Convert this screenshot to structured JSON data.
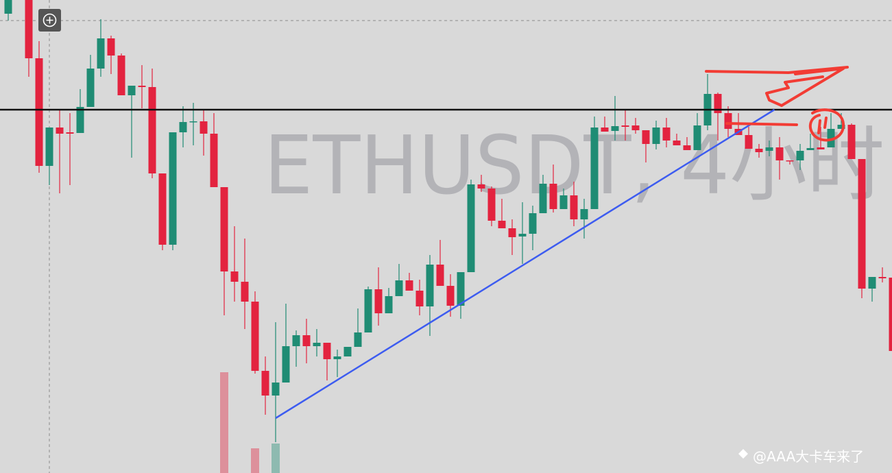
{
  "chart_data": {
    "type": "candlestick",
    "watermark": "ETHUSDT, 4小时",
    "footer": "@AAA大卡车来了",
    "ylim": [
      0,
      690
    ],
    "up_color": "#1f8c74",
    "down_color": "#e3233f",
    "open": [
      670,
      null,
      690,
      605,
      448,
      504,
      497,
      496,
      534,
      590,
      634,
      609,
      551,
      565,
      563,
      437,
      333,
      497,
      512,
      513,
      495,
      417,
      294,
      279,
      250,
      149,
      113,
      132,
      185,
      201,
      185,
      190,
      166,
      170,
      184,
      205,
      268,
      233,
      258,
      281,
      266,
      243,
      304,
      273,
      244,
      293,
      421,
      415,
      368,
      357,
      345,
      349,
      379,
      422,
      385,
      405,
      370,
      385,
      504,
      499,
      507,
      507,
      500,
      480,
      504,
      485,
      478,
      471,
      507,
      553,
      525,
      502,
      493,
      473,
      470,
      475,
      456,
      456,
      471,
      475,
      475,
      502,
      508,
      458,
      269,
      286,
      285
    ],
    "high": [
      690,
      null,
      690,
      630,
      504,
      530,
      525,
      560,
      610,
      662,
      638,
      612,
      565,
      595,
      590,
      437,
      497,
      535,
      540,
      530,
      525,
      417,
      360,
      342,
      265,
      170,
      220,
      247,
      208,
      225,
      210,
      190,
      180,
      184,
      240,
      272,
      300,
      270,
      305,
      292,
      282,
      318,
      340,
      290,
      293,
      428,
      435,
      418,
      400,
      370,
      395,
      390,
      435,
      450,
      415,
      425,
      400,
      520,
      520,
      550,
      530,
      518,
      500,
      514,
      518,
      495,
      490,
      525,
      582,
      555,
      535,
      525,
      505,
      480,
      485,
      490,
      456,
      480,
      495,
      505,
      525,
      525,
      510,
      458,
      286,
      300,
      285
    ],
    "low": [
      660,
      null,
      578,
      438,
      420,
      408,
      420,
      496,
      534,
      578,
      582,
      551,
      460,
      532,
      430,
      325,
      325,
      475,
      478,
      463,
      417,
      230,
      250,
      210,
      145,
      85,
      45,
      132,
      155,
      160,
      170,
      135,
      140,
      170,
      184,
      205,
      215,
      233,
      258,
      266,
      230,
      200,
      273,
      228,
      225,
      293,
      410,
      360,
      357,
      318,
      305,
      325,
      379,
      380,
      385,
      360,
      342,
      385,
      498,
      485,
      485,
      495,
      453,
      472,
      475,
      478,
      471,
      471,
      500,
      485,
      490,
      493,
      473,
      460,
      462,
      428,
      450,
      442,
      471,
      472,
      475,
      502,
      458,
      255,
      250,
      278,
      178
    ],
    "close": [
      690,
      null,
      605,
      448,
      504,
      495,
      495,
      534,
      590,
      634,
      609,
      551,
      565,
      563,
      437,
      333,
      497,
      512,
      513,
      495,
      417,
      294,
      279,
      250,
      149,
      113,
      132,
      185,
      201,
      185,
      190,
      166,
      170,
      184,
      205,
      268,
      233,
      258,
      281,
      266,
      243,
      304,
      273,
      244,
      293,
      421,
      415,
      368,
      357,
      344,
      349,
      379,
      422,
      385,
      405,
      370,
      385,
      504,
      498,
      506,
      505,
      500,
      480,
      504,
      485,
      478,
      471,
      507,
      553,
      525,
      502,
      493,
      473,
      468,
      475,
      456,
      455,
      470,
      474,
      472,
      502,
      508,
      458,
      269,
      286,
      284,
      178
    ],
    "volume": [
      null,
      null,
      null,
      null,
      null,
      null,
      null,
      null,
      null,
      null,
      null,
      null,
      null,
      null,
      null,
      null,
      null,
      null,
      null,
      null,
      null,
      147,
      null,
      null,
      36,
      null,
      43,
      null,
      null,
      null,
      null,
      null,
      null,
      null,
      null,
      null,
      null,
      null,
      null,
      null,
      null,
      null,
      null,
      null,
      null,
      null,
      null,
      null,
      null,
      null,
      null,
      null,
      null,
      null,
      null,
      null,
      null,
      null,
      null,
      null,
      null,
      null,
      null,
      null,
      null,
      null,
      null,
      null,
      null,
      null,
      null,
      null,
      null,
      null,
      null,
      null,
      null,
      null,
      null,
      null,
      null,
      null,
      null,
      null,
      null,
      null,
      null
    ],
    "hline": {
      "value": 530,
      "color": "#111111"
    },
    "trendline": {
      "x": [
        26,
        74.5
      ],
      "y": [
        80,
        530
      ],
      "color": "#3d5cf0"
    }
  }
}
